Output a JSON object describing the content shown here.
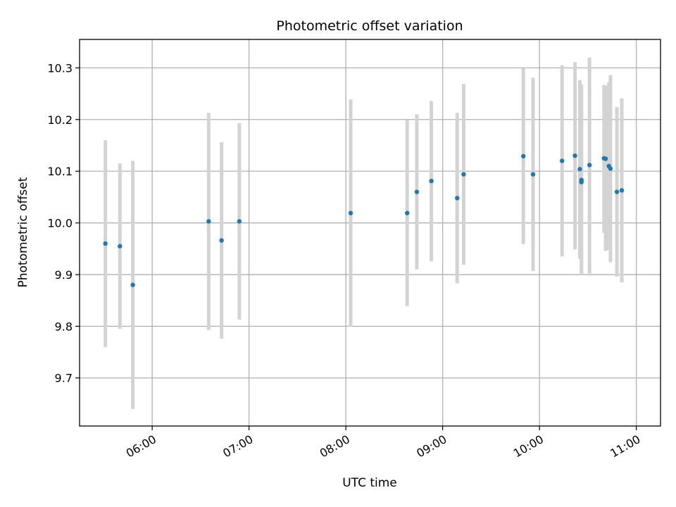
{
  "chart_data": {
    "type": "scatter",
    "title": "Photometric offset variation",
    "xlabel": "UTC time",
    "ylabel": "Photometric offset",
    "x_axis": {
      "kind": "time",
      "lim": [
        "05:15",
        "11:15"
      ],
      "ticks": [
        "06:00",
        "07:00",
        "08:00",
        "09:00",
        "10:00",
        "11:00"
      ]
    },
    "y_axis": {
      "lim": [
        9.607,
        10.355
      ],
      "ticks": [
        9.7,
        9.8,
        9.9,
        10.0,
        10.1,
        10.2,
        10.3
      ],
      "tick_labels": [
        "9.7",
        "9.8",
        "9.9",
        "10.0",
        "10.1",
        "10.2",
        "10.3"
      ]
    },
    "grid": true,
    "legend": "none",
    "marker_color": "#1f77b4",
    "errorbar_color": "#d3d3d3",
    "series": [
      {
        "points": [
          {
            "x": "05:31",
            "y": 9.96,
            "ylow": 9.76,
            "yhigh": 10.16
          },
          {
            "x": "05:40",
            "y": 9.955,
            "ylow": 9.795,
            "yhigh": 10.115
          },
          {
            "x": "05:48",
            "y": 9.88,
            "ylow": 9.64,
            "yhigh": 10.12
          },
          {
            "x": "06:35",
            "y": 10.003,
            "ylow": 9.793,
            "yhigh": 10.213
          },
          {
            "x": "06:43",
            "y": 9.966,
            "ylow": 9.776,
            "yhigh": 10.156
          },
          {
            "x": "06:54",
            "y": 10.003,
            "ylow": 9.813,
            "yhigh": 10.193
          },
          {
            "x": "08:03",
            "y": 10.019,
            "ylow": 9.799,
            "yhigh": 10.239
          },
          {
            "x": "08:38",
            "y": 10.019,
            "ylow": 9.839,
            "yhigh": 10.199
          },
          {
            "x": "08:44",
            "y": 10.06,
            "ylow": 9.91,
            "yhigh": 10.21
          },
          {
            "x": "08:53",
            "y": 10.081,
            "ylow": 9.926,
            "yhigh": 10.236
          },
          {
            "x": "09:09",
            "y": 10.048,
            "ylow": 9.883,
            "yhigh": 10.213
          },
          {
            "x": "09:13",
            "y": 10.094,
            "ylow": 9.919,
            "yhigh": 10.269
          },
          {
            "x": "09:50",
            "y": 10.129,
            "ylow": 9.959,
            "yhigh": 10.299
          },
          {
            "x": "09:56",
            "y": 10.094,
            "ylow": 9.907,
            "yhigh": 10.281
          },
          {
            "x": "10:14",
            "y": 10.12,
            "ylow": 9.935,
            "yhigh": 10.305
          },
          {
            "x": "10:22",
            "y": 10.13,
            "ylow": 9.949,
            "yhigh": 10.311
          },
          {
            "x": "10:25",
            "y": 10.104,
            "ylow": 9.931,
            "yhigh": 10.276
          },
          {
            "x": "10:26",
            "y": 10.083,
            "ylow": 9.903,
            "yhigh": 10.268
          },
          {
            "x": "10:26",
            "y": 10.079,
            "ylow": 9.9,
            "yhigh": 10.258
          },
          {
            "x": "10:31",
            "y": 10.112,
            "ylow": 9.902,
            "yhigh": 10.32
          },
          {
            "x": "10:40",
            "y": 10.125,
            "ylow": 9.981,
            "yhigh": 10.267
          },
          {
            "x": "10:41",
            "y": 10.124,
            "ylow": 9.946,
            "yhigh": 10.266
          },
          {
            "x": "10:43",
            "y": 10.11,
            "ylow": 9.948,
            "yhigh": 10.272
          },
          {
            "x": "10:44",
            "y": 10.105,
            "ylow": 9.924,
            "yhigh": 10.286
          },
          {
            "x": "10:48",
            "y": 10.06,
            "ylow": 9.896,
            "yhigh": 10.224
          },
          {
            "x": "10:51",
            "y": 10.063,
            "ylow": 9.885,
            "yhigh": 10.241
          }
        ]
      }
    ]
  }
}
